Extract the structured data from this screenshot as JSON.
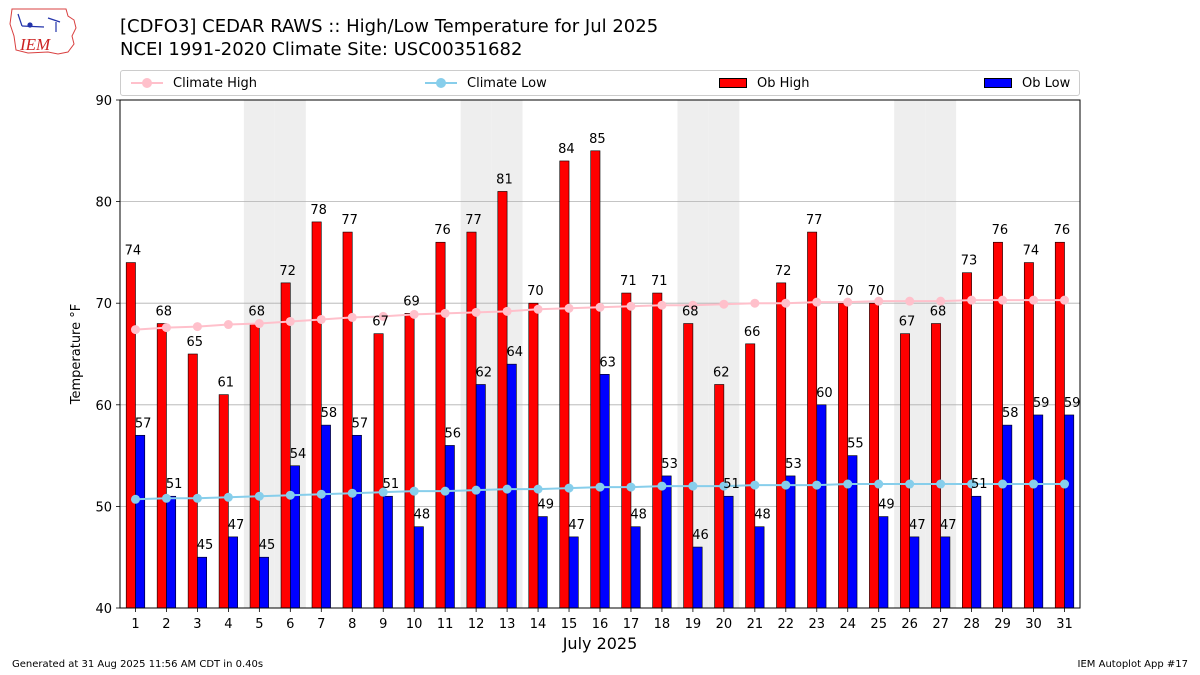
{
  "header": {
    "title_line1": "[CDFO3] CEDAR RAWS :: High/Low Temperature for Jul 2025",
    "title_line2": "NCEI 1991-2020 Climate Site: USC00351682"
  },
  "logo": {
    "text": "IEM"
  },
  "footer": {
    "generated": "Generated at 31 Aug 2025 11:56 AM CDT in 0.40s",
    "app": "IEM Autoplot App #17"
  },
  "colors": {
    "climate_high": "#ffc0cb",
    "climate_low": "#87ceeb",
    "ob_high": "#ff0000",
    "ob_low": "#0000ff",
    "weekend_band": "#eeeeee",
    "grid": "#b0b0b0"
  },
  "chart_data": {
    "type": "bar",
    "xlabel": "July 2025",
    "ylabel": "Temperature °F",
    "ylim": [
      40,
      90
    ],
    "yticks": [
      40,
      50,
      60,
      70,
      80,
      90
    ],
    "grid": "horizontal",
    "legend_position": "top",
    "categories": [
      "1",
      "2",
      "3",
      "4",
      "5",
      "6",
      "7",
      "8",
      "9",
      "10",
      "11",
      "12",
      "13",
      "14",
      "15",
      "16",
      "17",
      "18",
      "19",
      "20",
      "21",
      "22",
      "23",
      "24",
      "25",
      "26",
      "27",
      "28",
      "29",
      "30",
      "31"
    ],
    "shaded_days": [
      5,
      6,
      12,
      13,
      19,
      20,
      26,
      27
    ],
    "series": [
      {
        "name": "Ob High",
        "kind": "bar",
        "values": [
          74,
          68,
          65,
          61,
          68,
          72,
          78,
          77,
          67,
          69,
          76,
          77,
          81,
          70,
          84,
          85,
          71,
          71,
          68,
          62,
          66,
          72,
          77,
          70,
          70,
          67,
          68,
          73,
          76,
          74,
          76
        ]
      },
      {
        "name": "Ob Low",
        "kind": "bar",
        "values": [
          57,
          51,
          45,
          47,
          45,
          54,
          58,
          57,
          51,
          48,
          56,
          62,
          64,
          49,
          47,
          63,
          48,
          53,
          46,
          51,
          48,
          53,
          60,
          55,
          49,
          47,
          47,
          51,
          58,
          59,
          59
        ]
      },
      {
        "name": "Climate High",
        "kind": "line",
        "values": [
          67.4,
          67.6,
          67.7,
          67.9,
          68.0,
          68.2,
          68.4,
          68.6,
          68.7,
          68.9,
          69.0,
          69.1,
          69.2,
          69.4,
          69.5,
          69.6,
          69.7,
          69.8,
          69.8,
          69.9,
          70.0,
          70.0,
          70.1,
          70.1,
          70.2,
          70.2,
          70.2,
          70.3,
          70.3,
          70.3,
          70.3
        ]
      },
      {
        "name": "Climate Low",
        "kind": "line",
        "values": [
          50.7,
          50.8,
          50.8,
          50.9,
          51.0,
          51.1,
          51.2,
          51.3,
          51.4,
          51.5,
          51.5,
          51.6,
          51.7,
          51.7,
          51.8,
          51.9,
          51.9,
          52.0,
          52.0,
          52.0,
          52.1,
          52.1,
          52.1,
          52.2,
          52.2,
          52.2,
          52.2,
          52.2,
          52.2,
          52.2,
          52.2
        ]
      }
    ]
  }
}
